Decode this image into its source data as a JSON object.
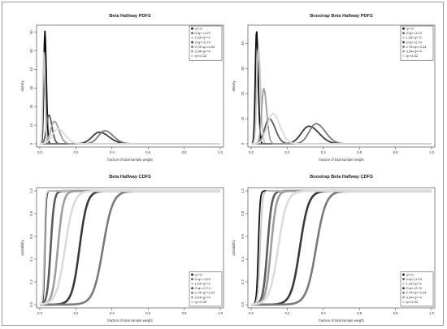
{
  "chart_data": [
    {
      "type": "line",
      "title": "Beta Halfway PDFS",
      "xlabel": "fraction of total sample weight",
      "ylabel": "density",
      "xlim": [
        0,
        1
      ],
      "ylim": [
        0,
        62
      ],
      "xticks": [
        "0.0",
        "0.2",
        "0.4",
        "0.6",
        "0.8",
        "1.0"
      ],
      "yticks": [
        "0",
        "10",
        "20",
        "30",
        "40",
        "50",
        "60"
      ],
      "legend_position": "top-right",
      "grid": false,
      "series": [
        {
          "name": "q<=0",
          "color": "#111111",
          "peak_x": 0.028,
          "peak_y": 60.5,
          "spread": 0.006
        },
        {
          "name": "0<q<=1.23",
          "color": "#5c5c5c",
          "peak_x": 0.05,
          "peak_y": 15.5,
          "spread": 0.013
        },
        {
          "name": "1.23<q<=2",
          "color": "#c7c7c7",
          "peak_x": 0.022,
          "peak_y": 49,
          "spread": 0.005
        },
        {
          "name": "2<q<=2.74",
          "color": "#3a3a3a",
          "peak_x": 0.33,
          "peak_y": 6.2,
          "spread": 0.04
        },
        {
          "name": "2.74<q<=3.24",
          "color": "#7a7a7a",
          "peak_x": 0.36,
          "peak_y": 7,
          "spread": 0.035
        },
        {
          "name": "3.24<q<=4",
          "color": "#9e9e9e",
          "peak_x": 0.08,
          "peak_y": 12,
          "spread": 0.02
        },
        {
          "name": "q>=4.32",
          "color": "#dcdcdc",
          "peak_x": 0.1,
          "peak_y": 8,
          "spread": 0.03
        }
      ]
    },
    {
      "type": "line",
      "title": "Boostrap Beta Halfway PDFS",
      "xlabel": "fraction of total sample weight",
      "ylabel": "density",
      "xlim": [
        0,
        1
      ],
      "ylim": [
        0,
        46
      ],
      "xticks": [
        "0.0",
        "0.2",
        "0.4",
        "0.6",
        "0.8",
        "1.0"
      ],
      "yticks": [
        "0",
        "10",
        "20",
        "30",
        "40"
      ],
      "legend_position": "top-right",
      "grid": false,
      "series": [
        {
          "name": "q<=0",
          "color": "#111111",
          "peak_x": 0.03,
          "peak_y": 45,
          "spread": 0.007
        },
        {
          "name": "0<q<=1.23",
          "color": "#5c5c5c",
          "peak_x": 0.1,
          "peak_y": 10,
          "spread": 0.025
        },
        {
          "name": "1.23<q<=2",
          "color": "#c7c7c7",
          "peak_x": 0.04,
          "peak_y": 38,
          "spread": 0.009
        },
        {
          "name": "2<q<=2.74",
          "color": "#3a3a3a",
          "peak_x": 0.32,
          "peak_y": 7,
          "spread": 0.042
        },
        {
          "name": "2.74<q<=3.24",
          "color": "#7a7a7a",
          "peak_x": 0.36,
          "peak_y": 8,
          "spread": 0.038
        },
        {
          "name": "3.24<q<=4",
          "color": "#9e9e9e",
          "peak_x": 0.07,
          "peak_y": 22,
          "spread": 0.012
        },
        {
          "name": "q>=4.32",
          "color": "#dcdcdc",
          "peak_x": 0.12,
          "peak_y": 12,
          "spread": 0.03
        }
      ]
    },
    {
      "type": "line",
      "title": "Beta Halfway CDFS",
      "xlabel": "fraction of total sample weight",
      "ylabel": "probability",
      "xlim": [
        0,
        1
      ],
      "ylim": [
        0,
        1
      ],
      "xticks": [
        "0.0",
        "0.2",
        "0.4",
        "0.6",
        "0.8",
        "1.0"
      ],
      "yticks": [
        "0.0",
        "0.2",
        "0.4",
        "0.6",
        "0.8",
        "1.0"
      ],
      "legend_position": "bottom-right",
      "grid": false,
      "series": [
        {
          "name": "q<=0",
          "color": "#111111",
          "mid_x": 0.028,
          "spread": 0.006
        },
        {
          "name": "0<q<=1.23",
          "color": "#5c5c5c",
          "mid_x": 0.06,
          "spread": 0.016
        },
        {
          "name": "1.23<q<=2",
          "color": "#c7c7c7",
          "mid_x": 0.025,
          "spread": 0.006
        },
        {
          "name": "2<q<=2.74",
          "color": "#3a3a3a",
          "mid_x": 0.22,
          "spread": 0.035
        },
        {
          "name": "2.74<q<=3.24",
          "color": "#7a7a7a",
          "mid_x": 0.35,
          "spread": 0.045
        },
        {
          "name": "3.24<q<=4",
          "color": "#9e9e9e",
          "mid_x": 0.1,
          "spread": 0.025
        },
        {
          "name": "q>=4.32",
          "color": "#dcdcdc",
          "mid_x": 0.14,
          "spread": 0.04
        }
      ]
    },
    {
      "type": "line",
      "title": "Boostrap Beta Halfway CDFS",
      "xlabel": "fraction of total sample weight",
      "ylabel": "probability",
      "xlim": [
        0,
        1
      ],
      "ylim": [
        0,
        1
      ],
      "xticks": [
        "0.0",
        "0.2",
        "0.4",
        "0.6",
        "0.8",
        "1.0"
      ],
      "yticks": [
        "0.0",
        "0.2",
        "0.4",
        "0.6",
        "0.8",
        "1.0"
      ],
      "legend_position": "bottom-right",
      "grid": false,
      "series": [
        {
          "name": "q<=0",
          "color": "#111111",
          "mid_x": 0.04,
          "spread": 0.008
        },
        {
          "name": "0<q<=1.23",
          "color": "#5c5c5c",
          "mid_x": 0.09,
          "spread": 0.02
        },
        {
          "name": "1.23<q<=2",
          "color": "#c7c7c7",
          "mid_x": 0.05,
          "spread": 0.01
        },
        {
          "name": "2<q<=2.74",
          "color": "#3a3a3a",
          "mid_x": 0.27,
          "spread": 0.04
        },
        {
          "name": "2.74<q<=3.24",
          "color": "#7a7a7a",
          "mid_x": 0.36,
          "spread": 0.045
        },
        {
          "name": "3.24<q<=4",
          "color": "#9e9e9e",
          "mid_x": 0.11,
          "spread": 0.025
        },
        {
          "name": "q>=4.32",
          "color": "#dcdcdc",
          "mid_x": 0.15,
          "spread": 0.04
        }
      ]
    }
  ]
}
